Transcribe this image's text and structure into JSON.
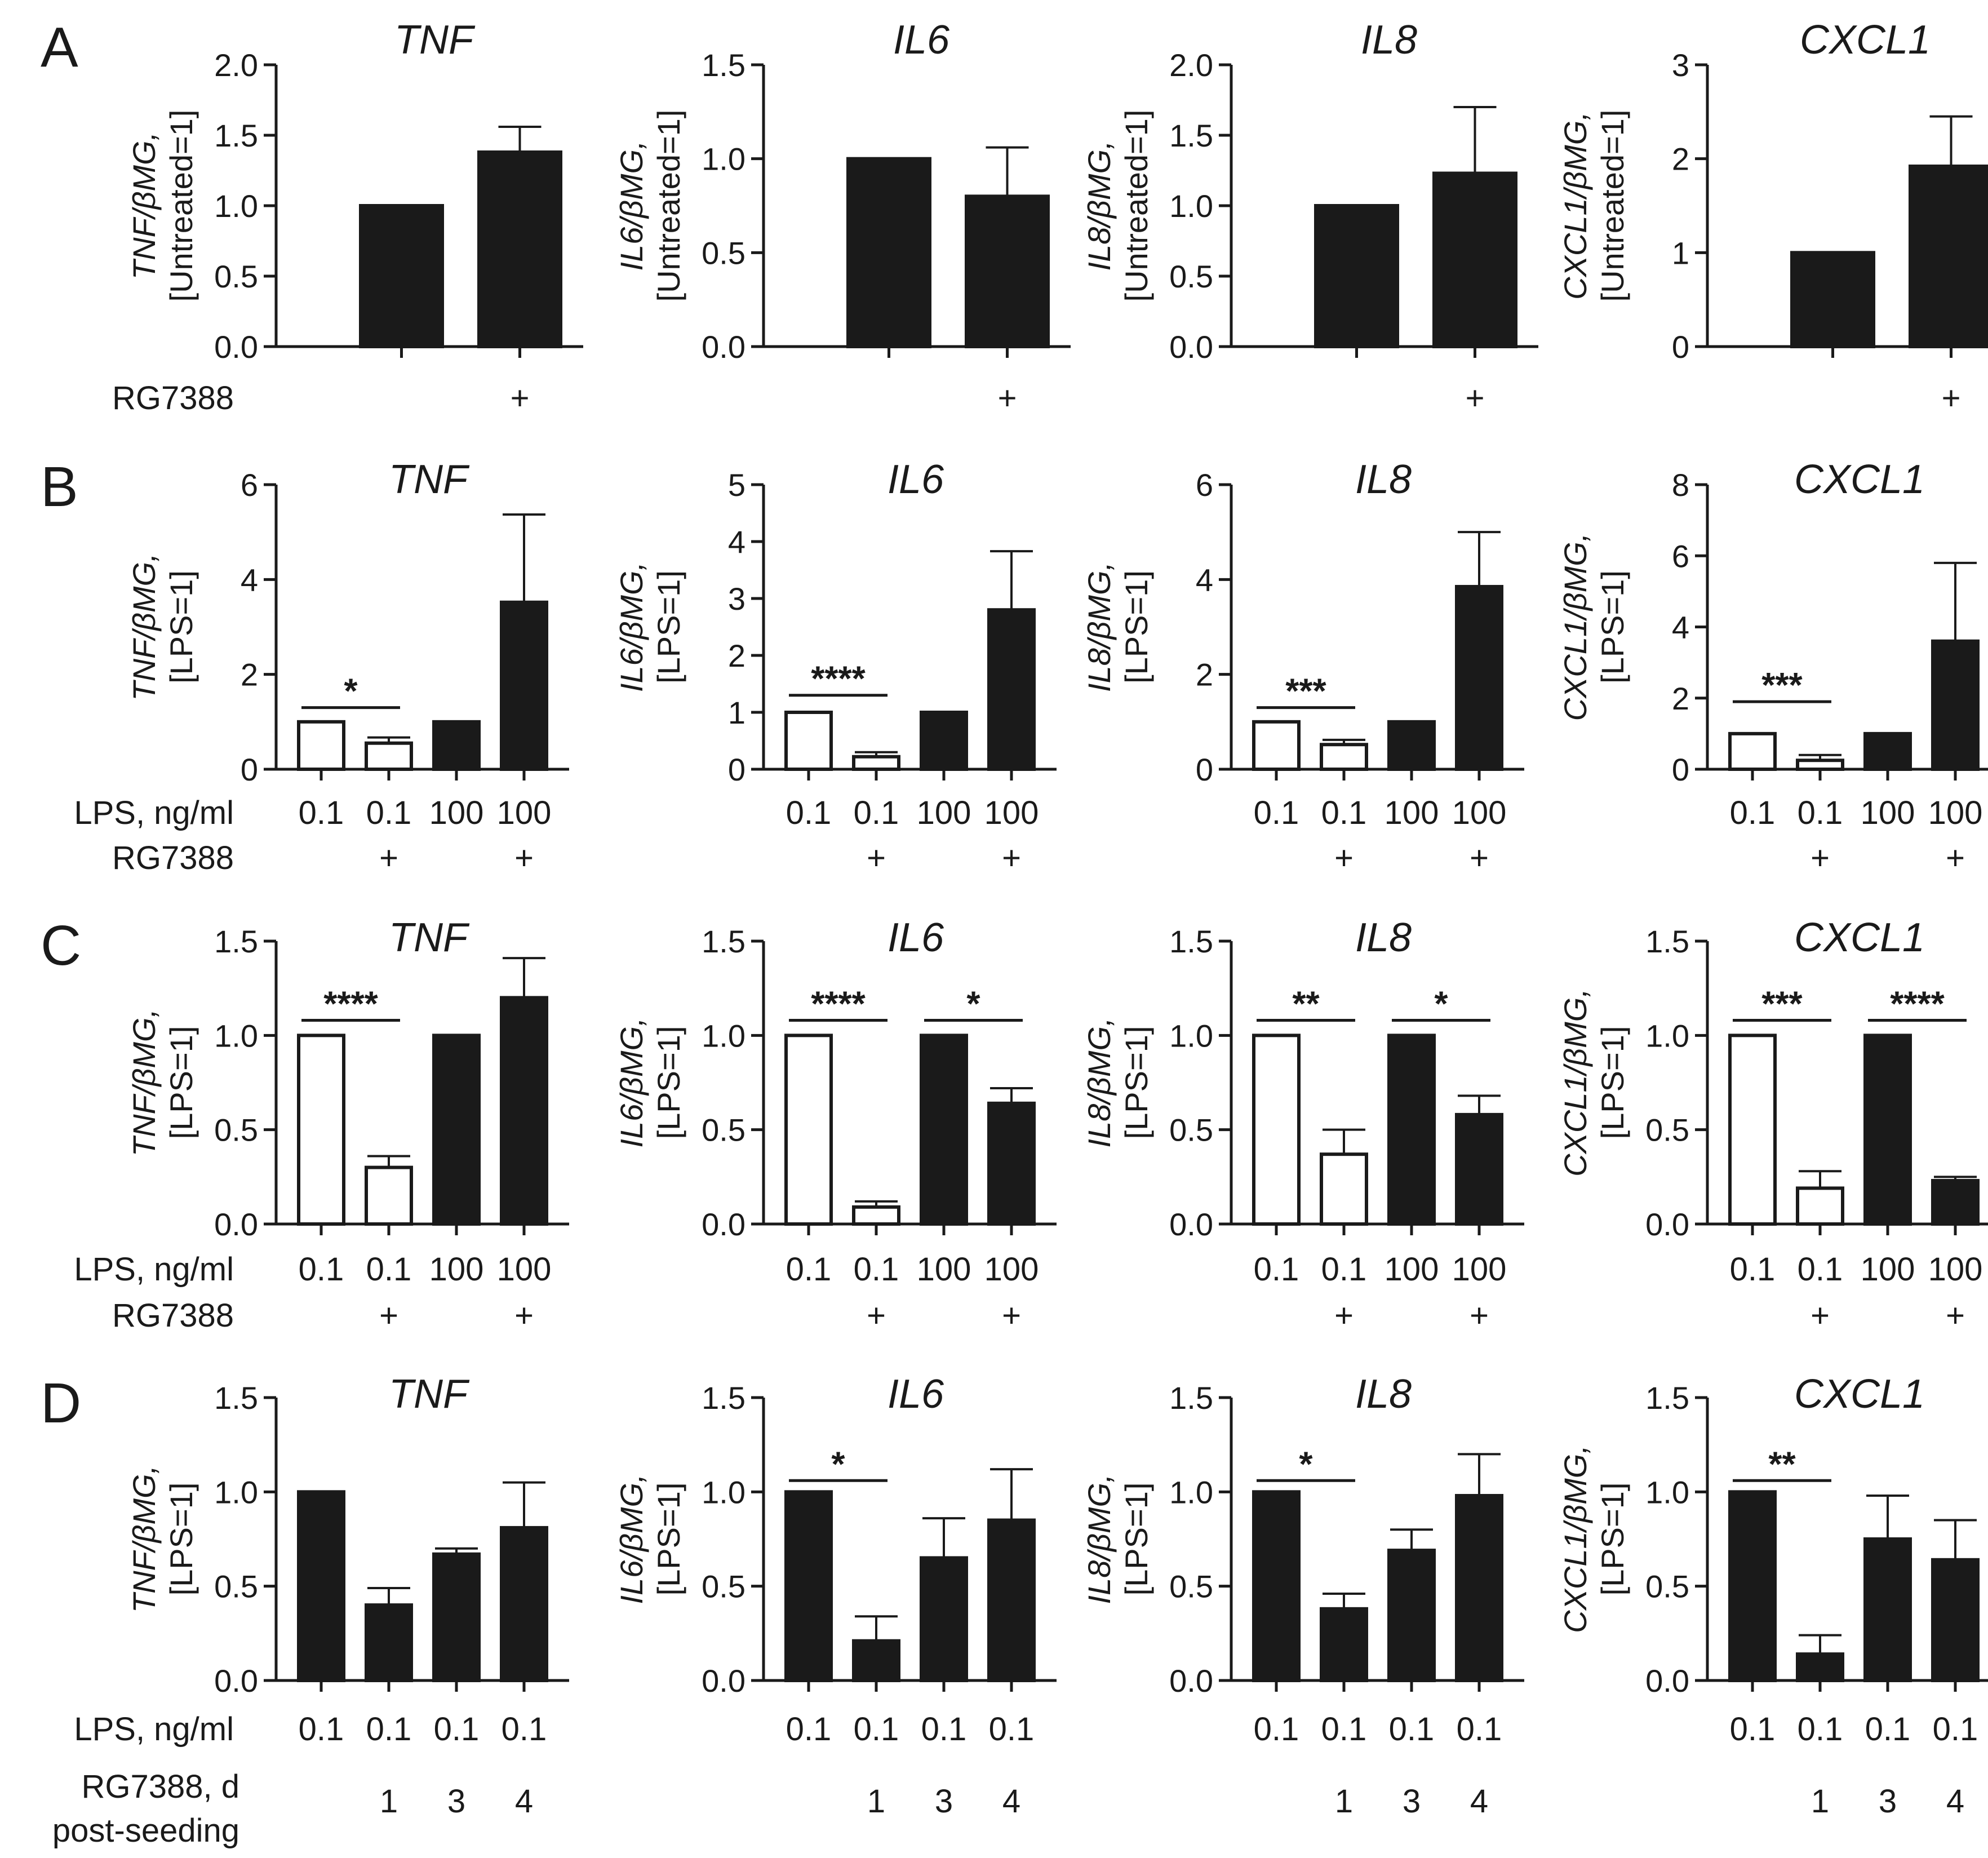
{
  "figure": {
    "row_labels": [
      "LPS, ng/ml",
      "RG7388",
      "RG7388, d",
      "post-seeding"
    ],
    "plus": "+"
  },
  "chart_data": [
    {
      "id": "A",
      "type": "bar",
      "title": "TNF",
      "ylabel_line1_gene": "TNF",
      "ylabel_line1_rest": "/βMG,",
      "ylabel_line2": "[Untreated=1]",
      "ylim": [
        0,
        2
      ],
      "ticks": [
        "0.0",
        "0.5",
        "1.0",
        "1.5",
        "2.0"
      ],
      "tick_values": [
        0,
        0.5,
        1,
        1.5,
        2
      ],
      "categories": [
        "",
        "+"
      ],
      "values": [
        1.0,
        1.38
      ],
      "errors": [
        0,
        0.18
      ],
      "fills": [
        "#1a1a1a",
        "#1a1a1a"
      ],
      "rows": [
        {
          "label": "RG7388",
          "cells": [
            "",
            "+"
          ]
        }
      ],
      "sig": []
    },
    {
      "id": "A",
      "type": "bar",
      "title": "IL6",
      "ylabel_line1_gene": "IL6",
      "ylabel_line1_rest": "/βMG,",
      "ylabel_line2": "[Untreated=1]",
      "ylim": [
        0,
        1.5
      ],
      "ticks": [
        "0.0",
        "0.5",
        "1.0",
        "1.5"
      ],
      "tick_values": [
        0,
        0.5,
        1,
        1.5
      ],
      "categories": [
        "",
        "+"
      ],
      "values": [
        1.0,
        0.8
      ],
      "errors": [
        0,
        0.26
      ],
      "fills": [
        "#1a1a1a",
        "#1a1a1a"
      ],
      "rows": [
        {
          "label": "",
          "cells": [
            "",
            "+"
          ]
        }
      ],
      "sig": []
    },
    {
      "id": "A",
      "type": "bar",
      "title": "IL8",
      "ylabel_line1_gene": "IL8",
      "ylabel_line1_rest": "/βMG,",
      "ylabel_line2": "[Untreated=1]",
      "ylim": [
        0,
        2
      ],
      "ticks": [
        "0.0",
        "0.5",
        "1.0",
        "1.5",
        "2.0"
      ],
      "tick_values": [
        0,
        0.5,
        1,
        1.5,
        2
      ],
      "categories": [
        "",
        "+"
      ],
      "values": [
        1.0,
        1.23
      ],
      "errors": [
        0,
        0.47
      ],
      "fills": [
        "#1a1a1a",
        "#1a1a1a"
      ],
      "rows": [
        {
          "label": "",
          "cells": [
            "",
            "+"
          ]
        }
      ],
      "sig": []
    },
    {
      "id": "A",
      "type": "bar",
      "title": "CXCL1",
      "ylabel_line1_gene": "CXCL1",
      "ylabel_line1_rest": "/βMG,",
      "ylabel_line2": "[Untreated=1]",
      "ylim": [
        0,
        3
      ],
      "ticks": [
        "0",
        "1",
        "2",
        "3"
      ],
      "tick_values": [
        0,
        1,
        2,
        3
      ],
      "categories": [
        "",
        "+"
      ],
      "values": [
        1.0,
        1.92
      ],
      "errors": [
        0,
        0.53
      ],
      "fills": [
        "#1a1a1a",
        "#1a1a1a"
      ],
      "rows": [
        {
          "label": "",
          "cells": [
            "",
            "+"
          ]
        }
      ],
      "sig": []
    },
    {
      "id": "B",
      "type": "bar",
      "title": "TNF",
      "ylabel_line1_gene": "TNF",
      "ylabel_line1_rest": "/βMG,",
      "ylabel_line2": "[LPS=1]",
      "ylim": [
        0,
        6
      ],
      "ticks": [
        "0",
        "2",
        "4",
        "6"
      ],
      "tick_values": [
        0,
        2,
        4,
        6
      ],
      "categories": [
        "0.1",
        "0.1",
        "100",
        "100"
      ],
      "values": [
        1.0,
        0.55,
        1.0,
        3.52
      ],
      "errors": [
        0,
        0.12,
        0,
        1.85
      ],
      "fills": [
        "#ffffff",
        "#ffffff",
        "#1a1a1a",
        "#1a1a1a"
      ],
      "rows": [
        {
          "label": "LPS, ng/ml",
          "cells": [
            "0.1",
            "0.1",
            "100",
            "100"
          ]
        },
        {
          "label": "RG7388",
          "cells": [
            "",
            "+",
            "",
            "+"
          ]
        }
      ],
      "sig": [
        {
          "from": 0,
          "to": 1,
          "y": 1.3,
          "text": "*"
        }
      ]
    },
    {
      "id": "B",
      "type": "bar",
      "title": "IL6",
      "ylabel_line1_gene": "IL6",
      "ylabel_line1_rest": "/βMG,",
      "ylabel_line2": "[LPS=1]",
      "ylim": [
        0,
        5
      ],
      "ticks": [
        "0",
        "1",
        "2",
        "3",
        "4",
        "5"
      ],
      "tick_values": [
        0,
        1,
        2,
        3,
        4,
        5
      ],
      "categories": [
        "0.1",
        "0.1",
        "100",
        "100"
      ],
      "values": [
        1.0,
        0.22,
        1.0,
        2.8
      ],
      "errors": [
        0,
        0.08,
        0,
        1.03
      ],
      "fills": [
        "#ffffff",
        "#ffffff",
        "#1a1a1a",
        "#1a1a1a"
      ],
      "rows": [
        {
          "label": "",
          "cells": [
            "0.1",
            "0.1",
            "100",
            "100"
          ]
        },
        {
          "label": "",
          "cells": [
            "",
            "+",
            "",
            "+"
          ]
        }
      ],
      "sig": [
        {
          "from": 0,
          "to": 1,
          "y": 1.3,
          "text": "****"
        }
      ]
    },
    {
      "id": "B",
      "type": "bar",
      "title": "IL8",
      "ylabel_line1_gene": "IL8",
      "ylabel_line1_rest": "/βMG,",
      "ylabel_line2": "[LPS=1]",
      "ylim": [
        0,
        6
      ],
      "ticks": [
        "0",
        "2",
        "4",
        "6"
      ],
      "tick_values": [
        0,
        2,
        4,
        6
      ],
      "categories": [
        "0.1",
        "0.1",
        "100",
        "100"
      ],
      "values": [
        1.0,
        0.52,
        1.0,
        3.85
      ],
      "errors": [
        0,
        0.1,
        0,
        1.15
      ],
      "fills": [
        "#ffffff",
        "#ffffff",
        "#1a1a1a",
        "#1a1a1a"
      ],
      "rows": [
        {
          "label": "",
          "cells": [
            "0.1",
            "0.1",
            "100",
            "100"
          ]
        },
        {
          "label": "",
          "cells": [
            "",
            "+",
            "",
            "+"
          ]
        }
      ],
      "sig": [
        {
          "from": 0,
          "to": 1,
          "y": 1.3,
          "text": "***"
        }
      ]
    },
    {
      "id": "B",
      "type": "bar",
      "title": "CXCL1",
      "ylabel_line1_gene": "CXCL1",
      "ylabel_line1_rest": "/βMG,",
      "ylabel_line2": "[LPS=1]",
      "ylim": [
        0,
        8
      ],
      "ticks": [
        "0",
        "2",
        "4",
        "6",
        "8"
      ],
      "tick_values": [
        0,
        2,
        4,
        6,
        8
      ],
      "categories": [
        "0.1",
        "0.1",
        "100",
        "100"
      ],
      "values": [
        1.0,
        0.25,
        1.0,
        3.6
      ],
      "errors": [
        0,
        0.15,
        0,
        2.2
      ],
      "fills": [
        "#ffffff",
        "#ffffff",
        "#1a1a1a",
        "#1a1a1a"
      ],
      "rows": [
        {
          "label": "",
          "cells": [
            "0.1",
            "0.1",
            "100",
            "100"
          ]
        },
        {
          "label": "",
          "cells": [
            "",
            "+",
            "",
            "+"
          ]
        }
      ],
      "sig": [
        {
          "from": 0,
          "to": 1,
          "y": 1.9,
          "text": "***"
        }
      ]
    },
    {
      "id": "C",
      "type": "bar",
      "title": "TNF",
      "ylabel_line1_gene": "TNF",
      "ylabel_line1_rest": "/βMG,",
      "ylabel_line2": "[LPS=1]",
      "ylim": [
        0,
        1.5
      ],
      "ticks": [
        "0.0",
        "0.5",
        "1.0",
        "1.5"
      ],
      "tick_values": [
        0,
        0.5,
        1,
        1.5
      ],
      "categories": [
        "0.1",
        "0.1",
        "100",
        "100"
      ],
      "values": [
        1.0,
        0.3,
        1.0,
        1.2
      ],
      "errors": [
        0,
        0.06,
        0,
        0.21
      ],
      "fills": [
        "#ffffff",
        "#ffffff",
        "#1a1a1a",
        "#1a1a1a"
      ],
      "rows": [
        {
          "label": "LPS, ng/ml",
          "cells": [
            "0.1",
            "0.1",
            "100",
            "100"
          ]
        },
        {
          "label": "RG7388",
          "cells": [
            "",
            "+",
            "",
            "+"
          ]
        }
      ],
      "sig": [
        {
          "from": 0,
          "to": 1,
          "y": 1.08,
          "text": "****"
        }
      ]
    },
    {
      "id": "C",
      "type": "bar",
      "title": "IL6",
      "ylabel_line1_gene": "IL6",
      "ylabel_line1_rest": "/βMG,",
      "ylabel_line2": "[LPS=1]",
      "ylim": [
        0,
        1.5
      ],
      "ticks": [
        "0.0",
        "0.5",
        "1.0",
        "1.5"
      ],
      "tick_values": [
        0,
        0.5,
        1,
        1.5
      ],
      "categories": [
        "0.1",
        "0.1",
        "100",
        "100"
      ],
      "values": [
        1.0,
        0.09,
        1.0,
        0.64
      ],
      "errors": [
        0,
        0.03,
        0,
        0.08
      ],
      "fills": [
        "#ffffff",
        "#ffffff",
        "#1a1a1a",
        "#1a1a1a"
      ],
      "rows": [
        {
          "label": "",
          "cells": [
            "0.1",
            "0.1",
            "100",
            "100"
          ]
        },
        {
          "label": "",
          "cells": [
            "",
            "+",
            "",
            "+"
          ]
        }
      ],
      "sig": [
        {
          "from": 0,
          "to": 1,
          "y": 1.08,
          "text": "****"
        },
        {
          "from": 2,
          "to": 3,
          "y": 1.08,
          "text": "*"
        }
      ]
    },
    {
      "id": "C",
      "type": "bar",
      "title": "IL8",
      "ylabel_line1_gene": "IL8",
      "ylabel_line1_rest": "/βMG,",
      "ylabel_line2": "[LPS=1]",
      "ylim": [
        0,
        1.5
      ],
      "ticks": [
        "0.0",
        "0.5",
        "1.0",
        "1.5"
      ],
      "tick_values": [
        0,
        0.5,
        1,
        1.5
      ],
      "categories": [
        "0.1",
        "0.1",
        "100",
        "100"
      ],
      "values": [
        1.0,
        0.37,
        1.0,
        0.58
      ],
      "errors": [
        0,
        0.13,
        0,
        0.1
      ],
      "fills": [
        "#ffffff",
        "#ffffff",
        "#1a1a1a",
        "#1a1a1a"
      ],
      "rows": [
        {
          "label": "",
          "cells": [
            "0.1",
            "0.1",
            "100",
            "100"
          ]
        },
        {
          "label": "",
          "cells": [
            "",
            "+",
            "",
            "+"
          ]
        }
      ],
      "sig": [
        {
          "from": 0,
          "to": 1,
          "y": 1.08,
          "text": "**"
        },
        {
          "from": 2,
          "to": 3,
          "y": 1.08,
          "text": "*"
        }
      ]
    },
    {
      "id": "C",
      "type": "bar",
      "title": "CXCL1",
      "ylabel_line1_gene": "CXCL1",
      "ylabel_line1_rest": "/βMG,",
      "ylabel_line2": "[LPS=1]",
      "ylim": [
        0,
        1.5
      ],
      "ticks": [
        "0.0",
        "0.5",
        "1.0",
        "1.5"
      ],
      "tick_values": [
        0,
        0.5,
        1,
        1.5
      ],
      "categories": [
        "0.1",
        "0.1",
        "100",
        "100"
      ],
      "values": [
        1.0,
        0.19,
        1.0,
        0.23
      ],
      "errors": [
        0,
        0.09,
        0,
        0.02
      ],
      "fills": [
        "#ffffff",
        "#ffffff",
        "#1a1a1a",
        "#1a1a1a"
      ],
      "rows": [
        {
          "label": "",
          "cells": [
            "0.1",
            "0.1",
            "100",
            "100"
          ]
        },
        {
          "label": "",
          "cells": [
            "",
            "+",
            "",
            "+"
          ]
        }
      ],
      "sig": [
        {
          "from": 0,
          "to": 1,
          "y": 1.08,
          "text": "***"
        },
        {
          "from": 2,
          "to": 3,
          "y": 1.08,
          "text": "****"
        }
      ]
    },
    {
      "id": "D",
      "type": "bar",
      "title": "TNF",
      "ylabel_line1_gene": "TNF",
      "ylabel_line1_rest": "/βMG,",
      "ylabel_line2": "[LPS=1]",
      "ylim": [
        0,
        1.5
      ],
      "ticks": [
        "0.0",
        "0.5",
        "1.0",
        "1.5"
      ],
      "tick_values": [
        0,
        0.5,
        1,
        1.5
      ],
      "categories": [
        "0.1",
        "0.1",
        "0.1",
        "0.1"
      ],
      "values": [
        1.0,
        0.4,
        0.67,
        0.81
      ],
      "errors": [
        0,
        0.09,
        0.03,
        0.24
      ],
      "fills": [
        "#1a1a1a",
        "#1a1a1a",
        "#1a1a1a",
        "#1a1a1a"
      ],
      "rows": [
        {
          "label": "LPS, ng/ml",
          "cells": [
            "0.1",
            "0.1",
            "0.1",
            "0.1"
          ]
        },
        {
          "label": "",
          "cells": [
            "",
            "1",
            "3",
            "4"
          ]
        }
      ],
      "sig": []
    },
    {
      "id": "D",
      "type": "bar",
      "title": "IL6",
      "ylabel_line1_gene": "IL6",
      "ylabel_line1_rest": "/βMG,",
      "ylabel_line2": "[LPS=1]",
      "ylim": [
        0,
        1.5
      ],
      "ticks": [
        "0.0",
        "0.5",
        "1.0",
        "1.5"
      ],
      "tick_values": [
        0,
        0.5,
        1,
        1.5
      ],
      "categories": [
        "0.1",
        "0.1",
        "0.1",
        "0.1"
      ],
      "values": [
        1.0,
        0.21,
        0.65,
        0.85
      ],
      "errors": [
        0,
        0.13,
        0.21,
        0.27
      ],
      "fills": [
        "#1a1a1a",
        "#1a1a1a",
        "#1a1a1a",
        "#1a1a1a"
      ],
      "rows": [
        {
          "label": "",
          "cells": [
            "0.1",
            "0.1",
            "0.1",
            "0.1"
          ]
        },
        {
          "label": "",
          "cells": [
            "",
            "1",
            "3",
            "4"
          ]
        }
      ],
      "sig": [
        {
          "from": 0,
          "to": 1,
          "y": 1.06,
          "text": "*"
        }
      ]
    },
    {
      "id": "D",
      "type": "bar",
      "title": "IL8",
      "ylabel_line1_gene": "IL8",
      "ylabel_line1_rest": "/βMG,",
      "ylabel_line2": "[LPS=1]",
      "ylim": [
        0,
        1.5
      ],
      "ticks": [
        "0.0",
        "0.5",
        "1.0",
        "1.5"
      ],
      "tick_values": [
        0,
        0.5,
        1,
        1.5
      ],
      "categories": [
        "0.1",
        "0.1",
        "0.1",
        "0.1"
      ],
      "values": [
        1.0,
        0.38,
        0.69,
        0.98
      ],
      "errors": [
        0,
        0.08,
        0.11,
        0.22
      ],
      "fills": [
        "#1a1a1a",
        "#1a1a1a",
        "#1a1a1a",
        "#1a1a1a"
      ],
      "rows": [
        {
          "label": "",
          "cells": [
            "0.1",
            "0.1",
            "0.1",
            "0.1"
          ]
        },
        {
          "label": "",
          "cells": [
            "",
            "1",
            "3",
            "4"
          ]
        }
      ],
      "sig": [
        {
          "from": 0,
          "to": 1,
          "y": 1.06,
          "text": "*"
        }
      ]
    },
    {
      "id": "D",
      "type": "bar",
      "title": "CXCL1",
      "ylabel_line1_gene": "CXCL1",
      "ylabel_line1_rest": "/βMG,",
      "ylabel_line2": "[LPS=1]",
      "ylim": [
        0,
        1.5
      ],
      "ticks": [
        "0.0",
        "0.5",
        "1.0",
        "1.5"
      ],
      "tick_values": [
        0,
        0.5,
        1,
        1.5
      ],
      "categories": [
        "0.1",
        "0.1",
        "0.1",
        "0.1"
      ],
      "values": [
        1.0,
        0.14,
        0.75,
        0.64
      ],
      "errors": [
        0,
        0.1,
        0.23,
        0.21
      ],
      "fills": [
        "#1a1a1a",
        "#1a1a1a",
        "#1a1a1a",
        "#1a1a1a"
      ],
      "rows": [
        {
          "label": "",
          "cells": [
            "0.1",
            "0.1",
            "0.1",
            "0.1"
          ]
        },
        {
          "label": "",
          "cells": [
            "",
            "1",
            "3",
            "4"
          ]
        }
      ],
      "sig": [
        {
          "from": 0,
          "to": 1,
          "y": 1.06,
          "text": "**"
        }
      ]
    }
  ]
}
